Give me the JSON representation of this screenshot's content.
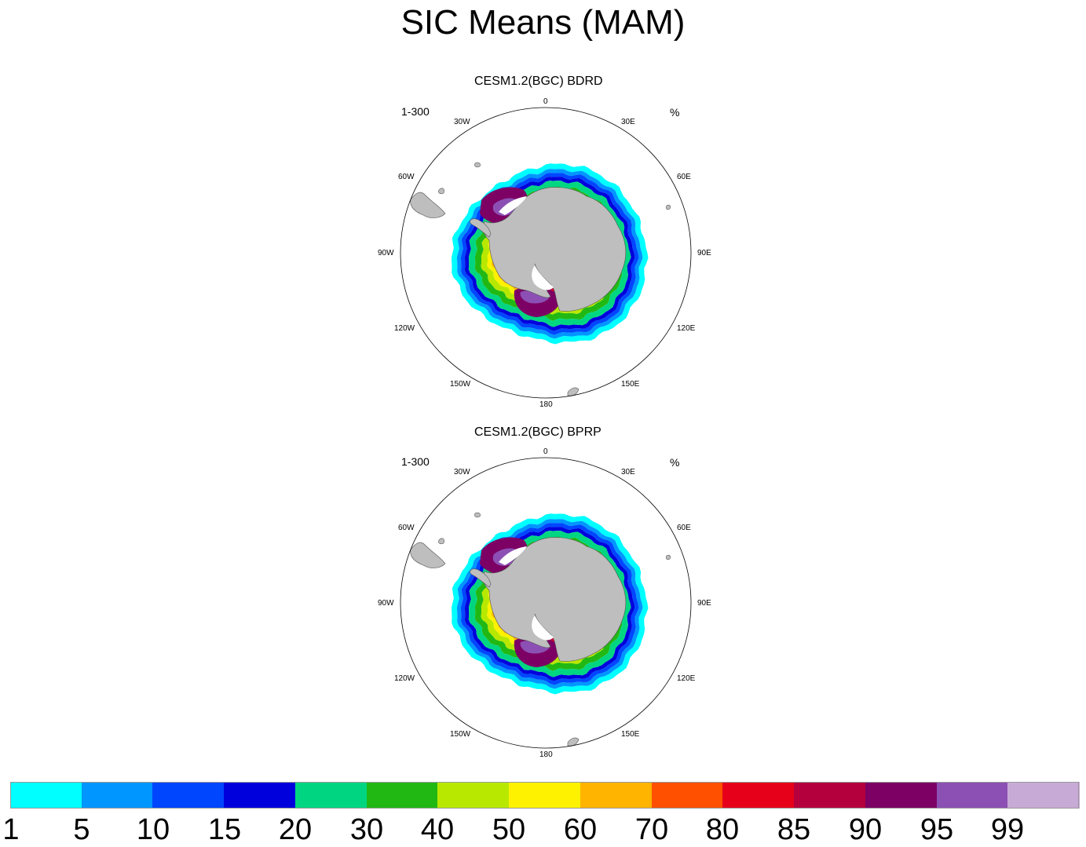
{
  "title": "SIC Means (MAM)",
  "panels": [
    {
      "title": "CESM1.2(BGC) BDRD",
      "left_label": "1-300",
      "right_label": "%"
    },
    {
      "title": "CESM1.2(BGC) BPRP",
      "left_label": "1-300",
      "right_label": "%"
    }
  ],
  "longitude_labels": [
    "0",
    "30E",
    "60E",
    "90E",
    "120E",
    "150E",
    "180",
    "150W",
    "120W",
    "90W",
    "60W",
    "30W"
  ],
  "colorbar": {
    "labels": [
      "1",
      "5",
      "10",
      "15",
      "20",
      "30",
      "40",
      "50",
      "60",
      "70",
      "80",
      "85",
      "90",
      "95",
      "99"
    ],
    "colors": [
      "#00ffff",
      "#0096ff",
      "#0046ff",
      "#0000dc",
      "#00d682",
      "#22b814",
      "#b8e800",
      "#fff200",
      "#ffb400",
      "#ff5000",
      "#e6001a",
      "#b4003c",
      "#7d0064",
      "#8c50b4",
      "#c8aad6"
    ]
  },
  "colors": {
    "land": "#bebebe",
    "coast": "#555555",
    "circle": "#000000"
  }
}
